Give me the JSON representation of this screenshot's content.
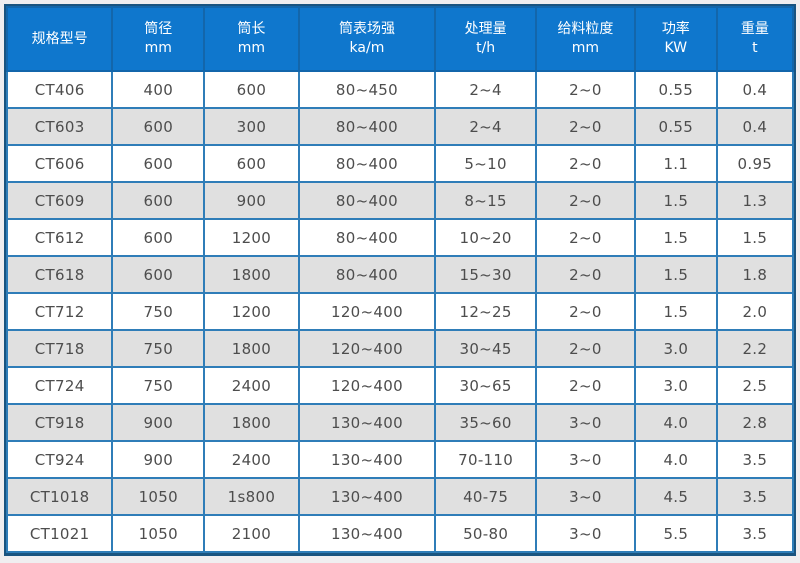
{
  "table": {
    "columns": [
      {
        "label": "规格型号",
        "unit": ""
      },
      {
        "label": "筒径",
        "unit": "mm"
      },
      {
        "label": "筒长",
        "unit": "mm"
      },
      {
        "label": "筒表场强",
        "unit": "ka/m"
      },
      {
        "label": "处理量",
        "unit": "t/h"
      },
      {
        "label": "给料粒度",
        "unit": "mm"
      },
      {
        "label": "功率",
        "unit": "KW"
      },
      {
        "label": "重量",
        "unit": "t"
      }
    ],
    "column_widths_pct": [
      13.4,
      11.7,
      12.0,
      17.4,
      12.8,
      12.6,
      10.4,
      9.7
    ],
    "rows": [
      [
        "CT406",
        "400",
        "600",
        "80~450",
        "2~4",
        "2~0",
        "0.55",
        "0.4"
      ],
      [
        "CT603",
        "600",
        "300",
        "80~400",
        "2~4",
        "2~0",
        "0.55",
        "0.4"
      ],
      [
        "CT606",
        "600",
        "600",
        "80~400",
        "5~10",
        "2~0",
        "1.1",
        "0.95"
      ],
      [
        "CT609",
        "600",
        "900",
        "80~400",
        "8~15",
        "2~0",
        "1.5",
        "1.3"
      ],
      [
        "CT612",
        "600",
        "1200",
        "80~400",
        "10~20",
        "2~0",
        "1.5",
        "1.5"
      ],
      [
        "CT618",
        "600",
        "1800",
        "80~400",
        "15~30",
        "2~0",
        "1.5",
        "1.8"
      ],
      [
        "CT712",
        "750",
        "1200",
        "120~400",
        "12~25",
        "2~0",
        "1.5",
        "2.0"
      ],
      [
        "CT718",
        "750",
        "1800",
        "120~400",
        "30~45",
        "2~0",
        "3.0",
        "2.2"
      ],
      [
        "CT724",
        "750",
        "2400",
        "120~400",
        "30~65",
        "2~0",
        "3.0",
        "2.5"
      ],
      [
        "CT918",
        "900",
        "1800",
        "130~400",
        "35~60",
        "3~0",
        "4.0",
        "2.8"
      ],
      [
        "CT924",
        "900",
        "2400",
        "130~400",
        "70-110",
        "3~0",
        "4.0",
        "3.5"
      ],
      [
        "CT1018",
        "1050",
        "1s800",
        "130~400",
        "40-75",
        "3~0",
        "4.5",
        "3.5"
      ],
      [
        "CT1021",
        "1050",
        "2100",
        "130~400",
        "50-80",
        "3~0",
        "5.5",
        "3.5"
      ]
    ]
  },
  "chart_data": {
    "type": "table",
    "title": "",
    "categories": [
      "规格型号",
      "筒径 mm",
      "筒长 mm",
      "筒表场强 ka/m",
      "处理量 t/h",
      "给料粒度 mm",
      "功率 KW",
      "重量 t"
    ],
    "series": [
      {
        "name": "CT406",
        "values": [
          "400",
          "600",
          "80~450",
          "2~4",
          "2~0",
          "0.55",
          "0.4"
        ]
      },
      {
        "name": "CT603",
        "values": [
          "600",
          "300",
          "80~400",
          "2~4",
          "2~0",
          "0.55",
          "0.4"
        ]
      },
      {
        "name": "CT606",
        "values": [
          "600",
          "600",
          "80~400",
          "5~10",
          "2~0",
          "1.1",
          "0.95"
        ]
      },
      {
        "name": "CT609",
        "values": [
          "600",
          "900",
          "80~400",
          "8~15",
          "2~0",
          "1.5",
          "1.3"
        ]
      },
      {
        "name": "CT612",
        "values": [
          "600",
          "1200",
          "80~400",
          "10~20",
          "2~0",
          "1.5",
          "1.5"
        ]
      },
      {
        "name": "CT618",
        "values": [
          "600",
          "1800",
          "80~400",
          "15~30",
          "2~0",
          "1.5",
          "1.8"
        ]
      },
      {
        "name": "CT712",
        "values": [
          "750",
          "1200",
          "120~400",
          "12~25",
          "2~0",
          "1.5",
          "2.0"
        ]
      },
      {
        "name": "CT718",
        "values": [
          "750",
          "1800",
          "120~400",
          "30~45",
          "2~0",
          "3.0",
          "2.2"
        ]
      },
      {
        "name": "CT724",
        "values": [
          "750",
          "2400",
          "120~400",
          "30~65",
          "2~0",
          "3.0",
          "2.5"
        ]
      },
      {
        "name": "CT918",
        "values": [
          "900",
          "1800",
          "130~400",
          "35~60",
          "3~0",
          "4.0",
          "2.8"
        ]
      },
      {
        "name": "CT924",
        "values": [
          "900",
          "2400",
          "130~400",
          "70-110",
          "3~0",
          "4.0",
          "3.5"
        ]
      },
      {
        "name": "CT1018",
        "values": [
          "1050",
          "1s800",
          "130~400",
          "40-75",
          "3~0",
          "4.5",
          "3.5"
        ]
      },
      {
        "name": "CT1021",
        "values": [
          "1050",
          "2100",
          "130~400",
          "50-80",
          "3~0",
          "5.5",
          "3.5"
        ]
      }
    ]
  },
  "colors": {
    "header_bg": "#0f77cd",
    "header_text": "#ffffff",
    "header_border": "#1366ab",
    "body_border": "#2f7db8",
    "outer_border": "#1a5480",
    "row_bg": "#ffffff",
    "row_alt_bg": "#e0e0e0",
    "body_text": "#4d4d4d",
    "page_bg": "#f0eef0"
  }
}
